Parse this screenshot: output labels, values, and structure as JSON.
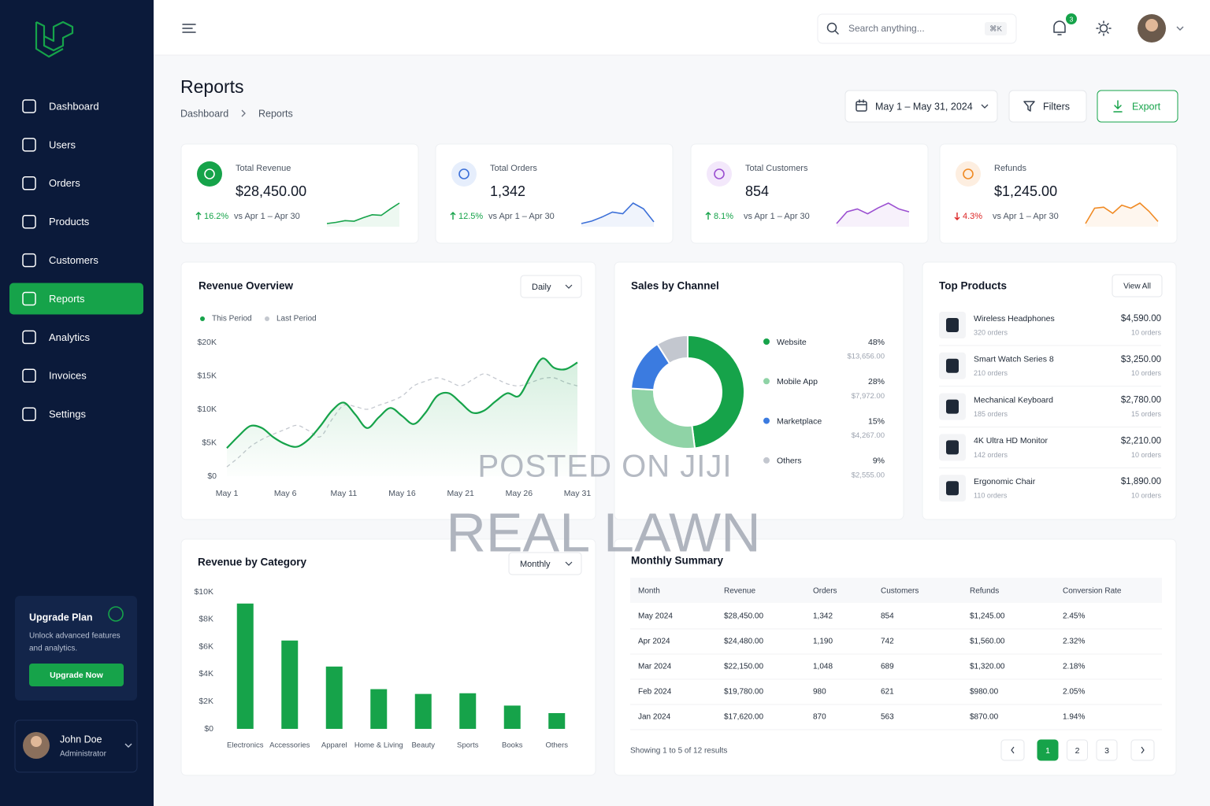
{
  "sidebar": {
    "nav": [
      {
        "label": "Dashboard"
      },
      {
        "label": "Users"
      },
      {
        "label": "Orders"
      },
      {
        "label": "Products"
      },
      {
        "label": "Customers"
      },
      {
        "label": "Reports",
        "active": true
      },
      {
        "label": "Analytics"
      },
      {
        "label": "Invoices"
      },
      {
        "label": "Settings"
      }
    ],
    "upgrade": {
      "title": "Upgrade Plan",
      "text": [
        "Unlock advanced features",
        "and analytics."
      ],
      "button": "Upgrade Now"
    },
    "user": {
      "name": "John Doe",
      "role": "Administrator"
    }
  },
  "header": {
    "search_placeholder": "Search anything...",
    "shortcut": "⌘K",
    "notification_count": "3"
  },
  "page": {
    "title": "Reports",
    "breadcrumb": [
      "Dashboard",
      "Reports"
    ],
    "date_range": "May 1 – May 31, 2024",
    "filters": "Filters",
    "export": "Export"
  },
  "kpis": [
    {
      "label": "Total Revenue",
      "value": "$28,450.00",
      "change": "16.2%",
      "direction": "up",
      "compare": "vs Apr 1 – Apr 30",
      "color": "#16a34a",
      "icon_bg": "#16a34a",
      "trend": [
        2,
        2.2,
        2.5,
        2.4,
        3,
        3.5,
        3.4,
        4.5,
        5.5
      ]
    },
    {
      "label": "Total Orders",
      "value": "1,342",
      "change": "12.5%",
      "direction": "up",
      "compare": "vs Apr 1 – Apr 30",
      "color": "#3b6fd8",
      "icon_bg": "#e6eefc",
      "trend": [
        1,
        1.3,
        1.8,
        2.4,
        2.2,
        3.5,
        2.8,
        1.2
      ]
    },
    {
      "label": "Total Customers",
      "value": "854",
      "change": "8.1%",
      "direction": "up",
      "compare": "vs Apr 1 – Apr 30",
      "color": "#9b4fd1",
      "icon_bg": "#f3e8fb",
      "trend": [
        1,
        2.2,
        2.5,
        2,
        2.6,
        3.1,
        2.5,
        2.2
      ]
    },
    {
      "label": "Refunds",
      "value": "$1,245.00",
      "change": "4.3%",
      "direction": "down",
      "compare": "vs Apr 1 – Apr 30",
      "color": "#f08a24",
      "icon_bg": "#fdeee0",
      "trend": [
        1,
        2.5,
        2.6,
        2,
        2.8,
        2.5,
        3,
        2.2,
        1.2
      ]
    }
  ],
  "top_products": {
    "title": "Top Products",
    "action": "View All",
    "items": [
      {
        "name": "Wireless Headphones",
        "sales": "320 orders",
        "amount": "$4,590.00",
        "orders": "10 orders"
      },
      {
        "name": "Smart Watch Series 8",
        "sales": "210 orders",
        "amount": "$3,250.00",
        "orders": "10 orders"
      },
      {
        "name": "Mechanical Keyboard",
        "sales": "185 orders",
        "amount": "$2,780.00",
        "orders": "15 orders"
      },
      {
        "name": "4K Ultra HD Monitor",
        "sales": "142 orders",
        "amount": "$2,210.00",
        "orders": "10 orders"
      },
      {
        "name": "Ergonomic Chair",
        "sales": "110 orders",
        "amount": "$1,890.00",
        "orders": "10 orders"
      }
    ]
  },
  "monthly_summary": {
    "title": "Monthly Summary",
    "columns": [
      "Month",
      "Revenue",
      "Orders",
      "Customers",
      "Refunds",
      "Conversion Rate"
    ],
    "rows": [
      [
        "May 2024",
        "$28,450.00",
        "1,342",
        "854",
        "$1,245.00",
        "2.45%"
      ],
      [
        "Apr 2024",
        "$24,480.00",
        "1,190",
        "742",
        "$1,560.00",
        "2.32%"
      ],
      [
        "Mar 2024",
        "$22,150.00",
        "1,048",
        "689",
        "$1,320.00",
        "2.18%"
      ],
      [
        "Feb 2024",
        "$19,780.00",
        "980",
        "621",
        "$980.00",
        "2.05%"
      ],
      [
        "Jan 2024",
        "$17,620.00",
        "870",
        "563",
        "$870.00",
        "1.94%"
      ]
    ],
    "footer": "Showing 1 to 5 of 12 results",
    "pages": [
      {
        "label": "1",
        "active": true
      },
      {
        "label": "2"
      },
      {
        "label": "3"
      }
    ]
  },
  "watermark": [
    "POSTED ON JIJI",
    "REAL LAWN"
  ],
  "chart_data": [
    {
      "type": "line",
      "title": "Revenue Overview",
      "control": "Daily",
      "area": true,
      "categories": [
        "May 1",
        null,
        null,
        null,
        null,
        "May 6",
        null,
        null,
        null,
        null,
        "May 11",
        null,
        null,
        null,
        null,
        "May 16",
        null,
        null,
        null,
        null,
        "May 21",
        null,
        null,
        null,
        null,
        "May 26",
        null,
        null,
        null,
        null,
        "May 31"
      ],
      "series": [
        {
          "name": "This Period",
          "color": "#16a34a",
          "values": [
            4200,
            6000,
            7500,
            7200,
            5800,
            4800,
            4400,
            5500,
            7500,
            9800,
            11000,
            9200,
            7200,
            8800,
            10200,
            9000,
            7800,
            9500,
            12000,
            12400,
            11000,
            9500,
            9800,
            11200,
            12400,
            12000,
            15000,
            17600,
            16200,
            16000,
            17000
          ]
        },
        {
          "name": "Last Period",
          "color": "#c4c8cf",
          "dashed": true,
          "values": [
            1400,
            2800,
            4400,
            5500,
            6300,
            7000,
            7600,
            6800,
            5900,
            8500,
            10600,
            10400,
            10000,
            10600,
            11200,
            12000,
            13500,
            14200,
            14700,
            14200,
            13500,
            14400,
            15300,
            14600,
            13800,
            13500,
            14000,
            14600,
            14700,
            14000,
            13500
          ]
        }
      ],
      "ylim": [
        0,
        20000
      ],
      "yticks": [
        {
          "value": 0,
          "label": "$0"
        },
        {
          "value": 5000,
          "label": "$5K"
        },
        {
          "value": 10000,
          "label": "$10K"
        },
        {
          "value": 15000,
          "label": "$15K"
        },
        {
          "value": 20000,
          "label": "$20K"
        }
      ],
      "grid": false
    },
    {
      "type": "donut",
      "title": "Sales by Channel",
      "categories": [
        "Website",
        "Mobile App",
        "Marketplace",
        "Others"
      ],
      "values": [
        48,
        28,
        15,
        9
      ],
      "value_labels": [
        "48%",
        "28%",
        "15%",
        "9%"
      ],
      "amounts": [
        13656,
        7972,
        4267,
        2555
      ],
      "amount_labels": [
        "$13,656.00",
        "$7,972.00",
        "$4,267.00",
        "$2,555.00"
      ],
      "colors": [
        "#16a34a",
        "#8fd3a6",
        "#3b7be0",
        "#c3c7cf"
      ]
    },
    {
      "type": "bar",
      "title": "Revenue by Category",
      "control": "Monthly",
      "categories": [
        "Electronics",
        "Accessories",
        "Apparel",
        "Home & Living",
        "Beauty",
        "Sports",
        "Books",
        "Others"
      ],
      "values": [
        9150,
        6450,
        4550,
        2900,
        2550,
        2600,
        1700,
        1150
      ],
      "color": "#16a34a",
      "ylim": [
        0,
        10000
      ],
      "yticks": [
        {
          "value": 0,
          "label": "$0"
        },
        {
          "value": 2000,
          "label": "$2K"
        },
        {
          "value": 4000,
          "label": "$4K"
        },
        {
          "value": 6000,
          "label": "$6K"
        },
        {
          "value": 8000,
          "label": "$8K"
        },
        {
          "value": 10000,
          "label": "$10K"
        }
      ],
      "grid": false
    }
  ]
}
